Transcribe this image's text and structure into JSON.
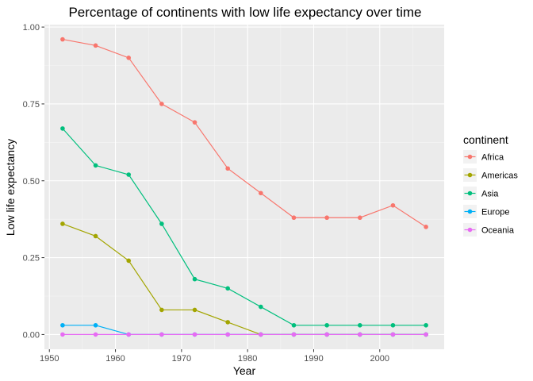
{
  "chart_data": {
    "type": "line",
    "title": "Percentage of continents with low life expectancy over time",
    "xlabel": "Year",
    "ylabel": "Low life expectancy",
    "xlim": [
      1949.25,
      2009.75
    ],
    "ylim": [
      -0.048,
      1.008
    ],
    "x_ticks": [
      1950,
      1960,
      1970,
      1980,
      1990,
      2000
    ],
    "y_ticks": [
      0,
      0.25,
      0.5,
      0.75,
      1
    ],
    "x_tick_labels": [
      "1950",
      "1960",
      "1970",
      "1980",
      "1990",
      "2000"
    ],
    "y_tick_labels": [
      "0.00",
      "0.25",
      "0.50",
      "0.75",
      "1.00"
    ],
    "grid": true,
    "legend": {
      "title": "continent",
      "position": "right"
    },
    "x": [
      1952,
      1957,
      1962,
      1967,
      1972,
      1977,
      1982,
      1987,
      1992,
      1997,
      2002,
      2007
    ],
    "series": [
      {
        "name": "Africa",
        "color": "#F8766D",
        "values": [
          0.96,
          0.94,
          0.9,
          0.75,
          0.69,
          0.54,
          0.46,
          0.38,
          0.38,
          0.38,
          0.42,
          0.35
        ]
      },
      {
        "name": "Americas",
        "color": "#A3A500",
        "values": [
          0.36,
          0.32,
          0.24,
          0.08,
          0.08,
          0.04,
          0.0,
          0.0,
          0.0,
          0.0,
          0.0,
          0.0
        ]
      },
      {
        "name": "Asia",
        "color": "#00BF7D",
        "values": [
          0.67,
          0.55,
          0.52,
          0.36,
          0.18,
          0.15,
          0.09,
          0.03,
          0.03,
          0.03,
          0.03,
          0.03
        ]
      },
      {
        "name": "Europe",
        "color": "#00B0F6",
        "values": [
          0.03,
          0.03,
          0.0,
          0.0,
          0.0,
          0.0,
          0.0,
          0.0,
          0.0,
          0.0,
          0.0,
          0.0
        ]
      },
      {
        "name": "Oceania",
        "color": "#E76BF3",
        "values": [
          0.0,
          0.0,
          0.0,
          0.0,
          0.0,
          0.0,
          0.0,
          0.0,
          0.0,
          0.0,
          0.0,
          0.0
        ]
      }
    ]
  }
}
